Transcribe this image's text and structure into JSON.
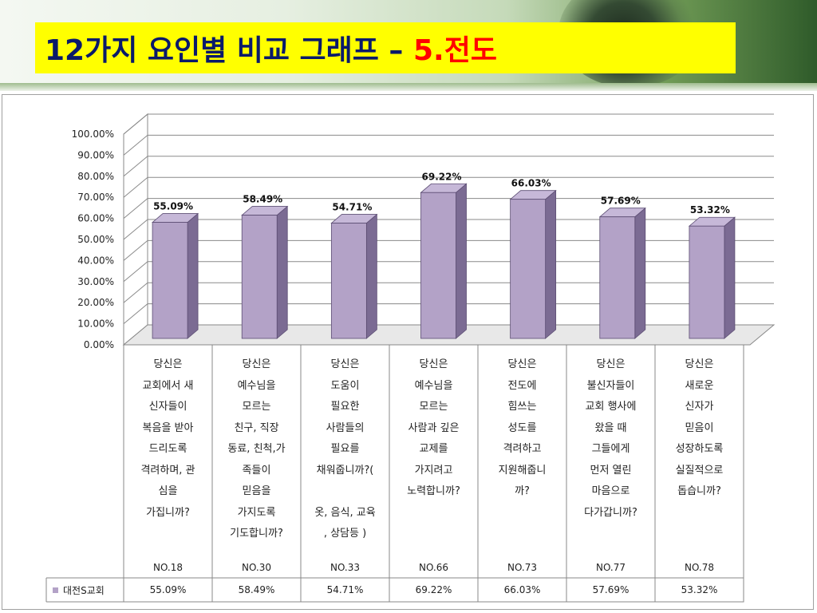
{
  "header": {
    "title_main": "12가지 요인별 비교 그래프 – ",
    "title_accent": "5.전도",
    "accent_color": "#ff0000",
    "title_color": "#0a1a6a",
    "title_bg": "#ffff00"
  },
  "chart_data": {
    "type": "bar",
    "style": "3d-column",
    "categories": [
      "NO.18",
      "NO.30",
      "NO.33",
      "NO.66",
      "NO.73",
      "NO.77",
      "NO.78"
    ],
    "series": [
      {
        "name": "대전S교회",
        "values": [
          55.09,
          58.49,
          54.71,
          69.22,
          66.03,
          57.69,
          53.32
        ],
        "color": "#b3a2c7"
      }
    ],
    "data_labels": [
      "55.09%",
      "58.49%",
      "54.71%",
      "69.22%",
      "66.03%",
      "57.69%",
      "53.32%"
    ],
    "y_ticks": [
      "0.00%",
      "10.00%",
      "20.00%",
      "30.00%",
      "40.00%",
      "50.00%",
      "60.00%",
      "70.00%",
      "80.00%",
      "90.00%",
      "100.00%"
    ],
    "ylim": [
      0,
      100
    ],
    "grid": true,
    "legend": "data-table-left"
  },
  "questions": [
    "당신은\n교회에서 새\n신자들이\n복음을 받아\n드리도록\n격려하며, 관\n심을\n가집니까?",
    "당신은\n예수님을\n모르는\n친구, 직장\n동료, 친척,가\n족들이\n믿음을\n가지도록\n기도합니까?",
    "당신은\n도움이\n필요한\n사람들의\n필요를\n채워줍니까?(\n\n옷, 음식, 교육\n, 상담등 )",
    "당신은\n예수님을\n모르는\n사람과 깊은\n교제를\n가지려고\n노력합니까?",
    "당신은\n전도에\n힘쓰는\n성도를\n격려하고\n지원해줍니\n까?",
    "당신은\n불신자들이\n교회 행사에\n왔을 때\n그들에게\n먼저 열린\n마음으로\n다가갑니까?",
    "당신은\n새로운\n신자가\n믿음이\n성장하도록\n실질적으로\n돕습니까?"
  ],
  "table": {
    "series_label": "대전S교회",
    "values": [
      "55.09%",
      "58.49%",
      "54.71%",
      "69.22%",
      "66.03%",
      "57.69%",
      "53.32%"
    ]
  }
}
